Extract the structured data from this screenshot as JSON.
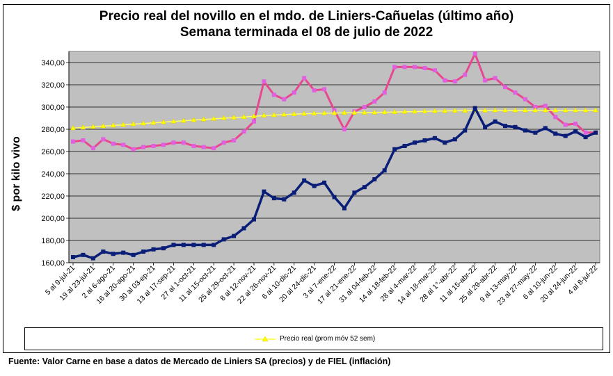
{
  "chart_data": {
    "type": "line",
    "title": "Precio real del novillo en el mdo. de Liniers-Cañuelas (último año)",
    "subtitle": "Semana terminada el 08 de julio de 2022",
    "ylabel": "$ por kilo vivo",
    "ylim": [
      160,
      350
    ],
    "yticks": [
      "160,00",
      "180,00",
      "200,00",
      "220,00",
      "240,00",
      "260,00",
      "280,00",
      "300,00",
      "320,00",
      "340,00"
    ],
    "ytick_values": [
      160,
      180,
      200,
      220,
      240,
      260,
      280,
      300,
      320,
      340
    ],
    "grid": true,
    "legend_position": "bottom",
    "x_tick_labels": [
      {
        "i": 0,
        "label": "5 al 9-jul-21"
      },
      {
        "i": 2,
        "label": "19 al 23-jul-21"
      },
      {
        "i": 4,
        "label": "2 al 6-ago-21"
      },
      {
        "i": 6,
        "label": "16 al 20-ago-21"
      },
      {
        "i": 8,
        "label": "30 al 03-ep-21"
      },
      {
        "i": 10,
        "label": "13 al 17-sep-21"
      },
      {
        "i": 12,
        "label": "27 al 1-oct-21"
      },
      {
        "i": 14,
        "label": "11 al 15-oct-21"
      },
      {
        "i": 16,
        "label": "25 al 29-oct-21"
      },
      {
        "i": 18,
        "label": "8 al 12-nov-21"
      },
      {
        "i": 20,
        "label": "22 al 26-nov-21"
      },
      {
        "i": 22,
        "label": "6 al 10-dic-21"
      },
      {
        "i": 24,
        "label": "20 al 24-dic-21"
      },
      {
        "i": 26,
        "label": "3 al 7-ene-22"
      },
      {
        "i": 28,
        "label": "17 al 21-ene-22"
      },
      {
        "i": 30,
        "label": "31 al 04-feb-22"
      },
      {
        "i": 32,
        "label": "14 al 18-feb-22"
      },
      {
        "i": 34,
        "label": "28 al 4-mar-22"
      },
      {
        "i": 36,
        "label": "14 al 18-mar-22"
      },
      {
        "i": 38,
        "label": "28 al 1°-abr-22"
      },
      {
        "i": 40,
        "label": "11 al 15-abr-22"
      },
      {
        "i": 42,
        "label": "25 al 29-abr-22"
      },
      {
        "i": 44,
        "label": "9 al 13-may-22"
      },
      {
        "i": 46,
        "label": "23 al 27-may-22"
      },
      {
        "i": 48,
        "label": "6 al 10-jun-22"
      },
      {
        "i": 50,
        "label": "20 al 24-jun-22"
      },
      {
        "i": 52,
        "label": "4 al 8-jul-22"
      }
    ],
    "series": [
      {
        "color": "#e8488f",
        "marker_color": "#e060e0",
        "values": [
          269,
          270,
          263,
          271,
          267,
          266,
          262,
          264,
          265,
          266,
          268,
          268,
          265,
          264,
          263,
          268,
          270,
          278,
          287,
          323,
          311,
          307,
          313,
          326,
          315,
          316,
          297,
          280,
          296,
          300,
          305,
          313,
          336,
          336,
          336,
          335,
          333,
          324,
          323,
          329,
          348,
          324,
          326,
          318,
          313,
          307,
          300,
          301,
          291,
          284,
          285,
          277,
          277
        ]
      },
      {
        "name": "Precio real (prom móv 52 sem)",
        "color": "#ffff66",
        "marker_color": "#ffff00",
        "values": [
          281.0,
          281.6,
          282.2,
          282.8,
          283.4,
          284.0,
          284.6,
          285.2,
          285.8,
          286.4,
          287.0,
          287.6,
          288.2,
          288.8,
          289.4,
          290.0,
          290.5,
          291.0,
          291.6,
          292.3,
          292.8,
          293.2,
          293.6,
          293.9,
          294.2,
          294.4,
          294.6,
          294.8,
          294.9,
          295.0,
          295.1,
          295.3,
          295.5,
          295.7,
          295.9,
          296.1,
          296.3,
          296.5,
          296.6,
          296.7,
          296.8,
          296.9,
          297.0,
          297.0,
          297.0,
          297.0,
          297.0,
          297.0,
          297.0,
          297.0,
          297.0,
          297.0,
          297.0
        ]
      },
      {
        "color": "#0a1e78",
        "marker_color": "#0a1e78",
        "values": [
          165,
          167,
          164,
          170,
          168,
          169,
          167,
          170,
          172,
          173,
          176,
          176,
          176,
          176,
          176,
          181,
          184,
          191,
          199,
          224,
          218,
          217,
          223,
          234,
          229,
          232,
          219,
          209,
          223,
          228,
          235,
          243,
          262,
          265,
          268,
          270,
          272,
          268,
          271,
          279,
          299,
          282,
          287,
          283,
          282,
          279,
          277,
          281,
          276,
          274,
          278,
          273,
          277
        ]
      }
    ]
  },
  "legend": {
    "label": "Precio real (prom móv 52 sem)"
  },
  "footer": "Fuente: Valor Carne en base a datos de Mercado de Liniers SA (precios) y de FIEL (inflación)"
}
